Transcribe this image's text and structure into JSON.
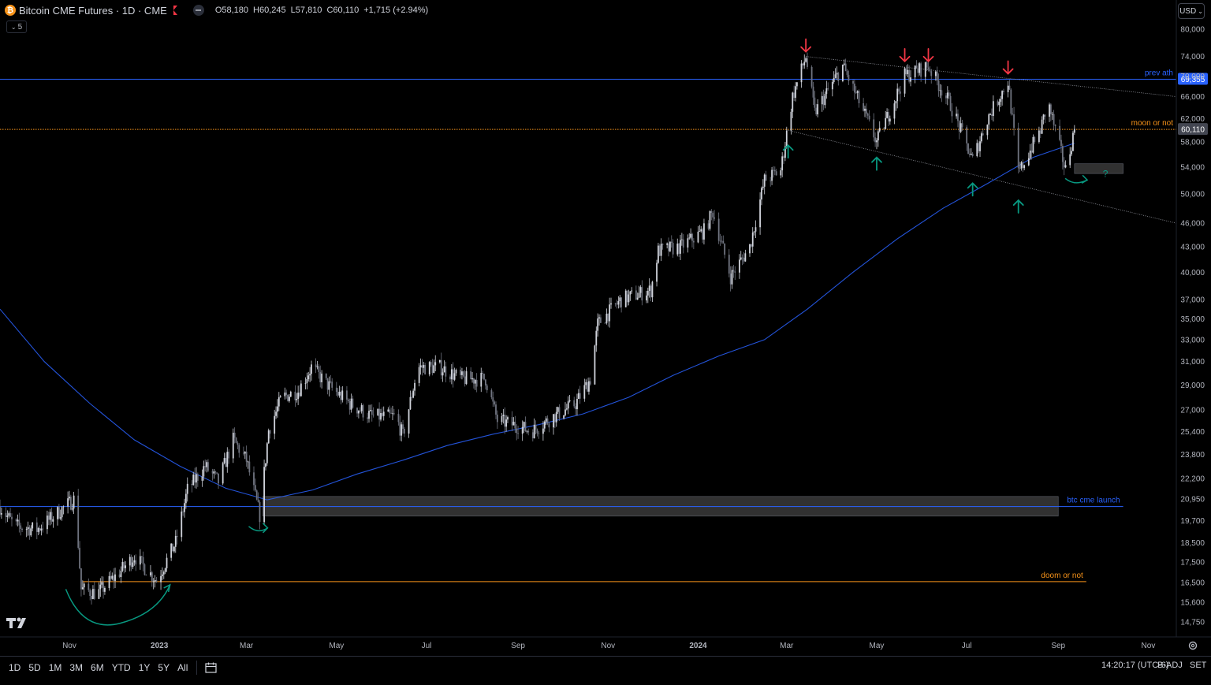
{
  "header": {
    "symbol_title": "Bitcoin CME Futures · 1D · CME",
    "coin_glyph": "₿",
    "ohlc": {
      "o_label": "O",
      "o": "58,180",
      "h_label": "H",
      "h": "60,245",
      "l_label": "L",
      "l": "57,810",
      "c_label": "C",
      "c": "60,110",
      "change": "+1,715 (+2.94%)"
    },
    "interval_chip": "5",
    "currency": "USD"
  },
  "toolbar": {
    "ranges": [
      "1D",
      "5D",
      "1M",
      "3M",
      "6M",
      "YTD",
      "1Y",
      "5Y",
      "All"
    ],
    "clock": "14:20:17 (UTC-6)",
    "adjustment": "B-ADJ",
    "session": "SET"
  },
  "colors": {
    "background": "#000000",
    "candle_up": "#d1d4dc",
    "candle_down": "#707480",
    "ma_line": "#2962ff",
    "blue_level": "#2962ff",
    "orange_level": "#f7931a",
    "red_arrow": "#f23645",
    "green_arrow": "#089981",
    "last_price_label": "#434651"
  },
  "chart_data": {
    "type": "candlestick",
    "title": "Bitcoin CME Futures · 1D · CME",
    "y_axis": {
      "scale": "log",
      "ticks": [
        80000,
        74000,
        70000,
        66000,
        62000,
        58000,
        54000,
        50000,
        46000,
        43000,
        40000,
        37000,
        35000,
        33000,
        31000,
        29000,
        27000,
        25400,
        23800,
        22200,
        20950,
        19700,
        18500,
        17500,
        16500,
        15600,
        14750
      ],
      "tick_labels": [
        "80,000",
        "74,000",
        "70,000",
        "66,000",
        "62,000",
        "58,000",
        "54,000",
        "50,000",
        "46,000",
        "43,000",
        "40,000",
        "37,000",
        "35,000",
        "33,000",
        "31,000",
        "29,000",
        "27,000",
        "25,400",
        "23,800",
        "22,200",
        "20,950",
        "19,700",
        "18,500",
        "17,500",
        "16,500",
        "15,600",
        "14,750"
      ],
      "range": [
        14200,
        82000
      ]
    },
    "x_axis": {
      "range": [
        "2022-09-15",
        "2024-11-20"
      ],
      "ticks": [
        {
          "date": "2022-11-01",
          "label": "Nov",
          "bold": false
        },
        {
          "date": "2023-01-01",
          "label": "2023",
          "bold": true
        },
        {
          "date": "2023-03-01",
          "label": "Mar",
          "bold": false
        },
        {
          "date": "2023-05-01",
          "label": "May",
          "bold": false
        },
        {
          "date": "2023-07-01",
          "label": "Jul",
          "bold": false
        },
        {
          "date": "2023-09-01",
          "label": "Sep",
          "bold": false
        },
        {
          "date": "2023-11-01",
          "label": "Nov",
          "bold": false
        },
        {
          "date": "2024-01-01",
          "label": "2024",
          "bold": true
        },
        {
          "date": "2024-03-01",
          "label": "Mar",
          "bold": false
        },
        {
          "date": "2024-05-01",
          "label": "May",
          "bold": false
        },
        {
          "date": "2024-07-01",
          "label": "Jul",
          "bold": false
        },
        {
          "date": "2024-09-01",
          "label": "Sep",
          "bold": false
        },
        {
          "date": "2024-11-01",
          "label": "Nov",
          "bold": false
        }
      ]
    },
    "price_path": [
      [
        "2022-09-15",
        20500
      ],
      [
        "2022-09-25",
        19400
      ],
      [
        "2022-10-10",
        19200
      ],
      [
        "2022-10-25",
        20200
      ],
      [
        "2022-11-05",
        21000
      ],
      [
        "2022-11-09",
        16200
      ],
      [
        "2022-11-20",
        16000
      ],
      [
        "2022-12-05",
        17000
      ],
      [
        "2022-12-15",
        17800
      ],
      [
        "2022-12-30",
        16600
      ],
      [
        "2023-01-12",
        18500
      ],
      [
        "2023-01-20",
        21500
      ],
      [
        "2023-02-01",
        23000
      ],
      [
        "2023-02-10",
        22000
      ],
      [
        "2023-02-20",
        24800
      ],
      [
        "2023-03-01",
        23400
      ],
      [
        "2023-03-10",
        20000
      ],
      [
        "2023-03-16",
        25500
      ],
      [
        "2023-03-25",
        28000
      ],
      [
        "2023-04-05",
        28500
      ],
      [
        "2023-04-14",
        30500
      ],
      [
        "2023-04-25",
        29000
      ],
      [
        "2023-05-10",
        27500
      ],
      [
        "2023-05-25",
        26500
      ],
      [
        "2023-06-10",
        26500
      ],
      [
        "2023-06-15",
        25100
      ],
      [
        "2023-06-25",
        30500
      ],
      [
        "2023-07-10",
        30500
      ],
      [
        "2023-07-25",
        29500
      ],
      [
        "2023-08-10",
        29500
      ],
      [
        "2023-08-18",
        26200
      ],
      [
        "2023-09-01",
        25800
      ],
      [
        "2023-09-10",
        25400
      ],
      [
        "2023-09-25",
        26500
      ],
      [
        "2023-10-10",
        27500
      ],
      [
        "2023-10-20",
        29500
      ],
      [
        "2023-10-25",
        34500
      ],
      [
        "2023-11-10",
        37000
      ],
      [
        "2023-11-30",
        38000
      ],
      [
        "2023-12-05",
        42500
      ],
      [
        "2023-12-20",
        43000
      ],
      [
        "2024-01-05",
        45000
      ],
      [
        "2024-01-11",
        47500
      ],
      [
        "2024-01-23",
        39500
      ],
      [
        "2024-02-05",
        43000
      ],
      [
        "2024-02-15",
        52000
      ],
      [
        "2024-02-26",
        53500
      ],
      [
        "2024-03-05",
        66000
      ],
      [
        "2024-03-14",
        74000
      ],
      [
        "2024-03-20",
        63000
      ],
      [
        "2024-04-08",
        72000
      ],
      [
        "2024-04-20",
        64500
      ],
      [
        "2024-05-01",
        58000
      ],
      [
        "2024-05-20",
        70000
      ],
      [
        "2024-06-05",
        72000
      ],
      [
        "2024-06-20",
        64500
      ],
      [
        "2024-07-05",
        55000
      ],
      [
        "2024-07-15",
        62000
      ],
      [
        "2024-07-29",
        69000
      ],
      [
        "2024-08-05",
        53000
      ],
      [
        "2024-08-20",
        60000
      ],
      [
        "2024-08-25",
        65000
      ],
      [
        "2024-09-06",
        53500
      ],
      [
        "2024-09-12",
        60110
      ]
    ],
    "last_price": 60110,
    "last_price_label": "60,110",
    "moving_average": {
      "name": "",
      "points": [
        [
          "2022-09-15",
          36000
        ],
        [
          "2022-10-15",
          31000
        ],
        [
          "2022-11-15",
          27500
        ],
        [
          "2022-12-15",
          24800
        ],
        [
          "2023-01-15",
          23000
        ],
        [
          "2023-02-15",
          21600
        ],
        [
          "2023-03-15",
          20900
        ],
        [
          "2023-04-15",
          21500
        ],
        [
          "2023-05-15",
          22500
        ],
        [
          "2023-06-15",
          23400
        ],
        [
          "2023-07-15",
          24400
        ],
        [
          "2023-08-15",
          25200
        ],
        [
          "2023-09-15",
          25900
        ],
        [
          "2023-10-15",
          26700
        ],
        [
          "2023-11-15",
          28000
        ],
        [
          "2023-12-15",
          29800
        ],
        [
          "2024-01-15",
          31500
        ],
        [
          "2024-02-15",
          33000
        ],
        [
          "2024-03-15",
          36000
        ],
        [
          "2024-04-15",
          40000
        ],
        [
          "2024-05-15",
          44000
        ],
        [
          "2024-06-15",
          48000
        ],
        [
          "2024-07-15",
          51500
        ],
        [
          "2024-08-15",
          55500
        ],
        [
          "2024-09-12",
          57800
        ]
      ]
    },
    "horizontal_levels": [
      {
        "price": 69355,
        "label": "prev ath",
        "color": "#2962ff",
        "style": "solid",
        "axis_label": "69,355",
        "extent": "full"
      },
      {
        "price": 60110,
        "label": "moon or not",
        "color": "#f7931a",
        "style": "dotted",
        "axis_label": "",
        "extent": "from-2022-09-15"
      },
      {
        "price": 20500,
        "label": "btc cme launch",
        "color": "#2962ff",
        "style": "solid",
        "axis_label": "",
        "extent": "to-2024-10-15"
      },
      {
        "price": 16550,
        "label": "doom or not",
        "color": "#f7931a",
        "style": "solid",
        "axis_label": "",
        "extent": "2022-11-10-to-2024-09-20"
      }
    ],
    "zones": [
      {
        "from": "2023-03-12",
        "to": "2024-09-01",
        "top": 21100,
        "bottom": 19950
      },
      {
        "from": "2024-09-12",
        "to": "2024-10-15",
        "top": 54500,
        "bottom": 53000
      }
    ],
    "trendlines": [
      {
        "from": [
          "2024-03-14",
          74000
        ],
        "to": [
          "2024-11-20",
          66000
        ]
      },
      {
        "from": [
          "2024-03-01",
          60000
        ],
        "to": [
          "2024-11-20",
          46000
        ]
      }
    ],
    "down_arrows": [
      {
        "date": "2024-03-14",
        "price": 74000
      },
      {
        "date": "2024-05-20",
        "price": 72000
      },
      {
        "date": "2024-06-05",
        "price": 72000
      },
      {
        "date": "2024-07-29",
        "price": 69500
      }
    ],
    "up_arrows": [
      {
        "date": "2024-03-02",
        "price": 58500
      },
      {
        "date": "2024-05-01",
        "price": 56500
      },
      {
        "date": "2024-07-05",
        "price": 52500
      },
      {
        "date": "2024-08-05",
        "price": 50000
      }
    ],
    "question_mark": {
      "text": "?",
      "date": "2024-09-28",
      "price": 52000
    }
  }
}
